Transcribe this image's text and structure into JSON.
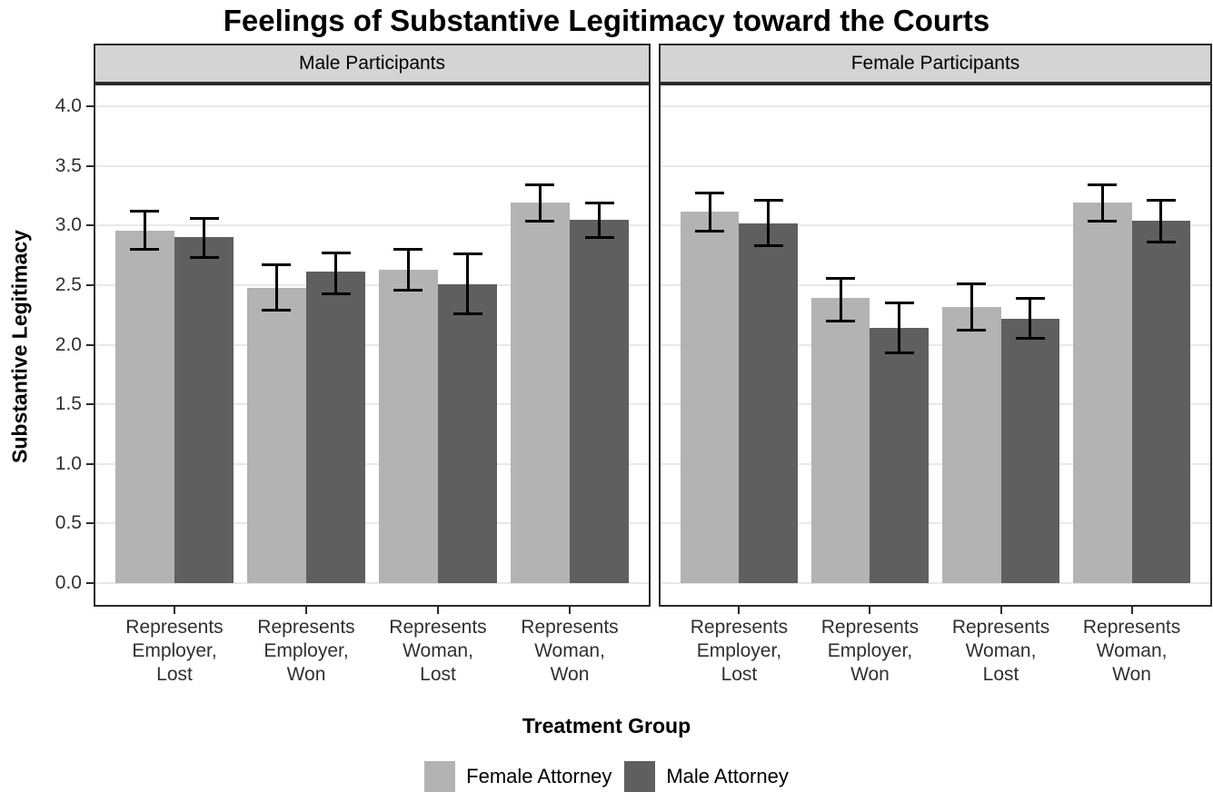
{
  "chart_data": {
    "type": "bar",
    "title": "Feelings of Substantive Legitimacy toward the Courts",
    "xlabel": "Treatment Group",
    "ylabel": "Substantive Legitimacy",
    "ylim": [
      0,
      4.2
    ],
    "yticks": [
      0.0,
      0.5,
      1.0,
      1.5,
      2.0,
      2.5,
      3.0,
      3.5,
      4.0
    ],
    "grid": "major horizontal only",
    "legend_position": "bottom",
    "categories": [
      [
        "Represents",
        "Employer,",
        "Lost"
      ],
      [
        "Represents",
        "Employer,",
        "Won"
      ],
      [
        "Represents",
        "Woman,",
        "Lost"
      ],
      [
        "Represents",
        "Woman,",
        "Won"
      ]
    ],
    "facets": [
      {
        "label": "Male Participants",
        "series": [
          {
            "name": "Female Attorney",
            "values": [
              2.96,
              2.48,
              2.63,
              3.19
            ],
            "ci_low": [
              2.8,
              2.29,
              2.46,
              3.04
            ],
            "ci_high": [
              3.12,
              2.67,
              2.8,
              3.34
            ]
          },
          {
            "name": "Male Attorney",
            "values": [
              2.9,
              2.61,
              2.51,
              3.05
            ],
            "ci_low": [
              2.73,
              2.43,
              2.26,
              2.9
            ],
            "ci_high": [
              3.06,
              2.77,
              2.76,
              3.19
            ]
          }
        ]
      },
      {
        "label": "Female Participants",
        "series": [
          {
            "name": "Female Attorney",
            "values": [
              3.12,
              2.39,
              2.32,
              3.19
            ],
            "ci_low": [
              2.95,
              2.2,
              2.12,
              3.04
            ],
            "ci_high": [
              3.27,
              2.56,
              2.51,
              3.34
            ]
          },
          {
            "name": "Male Attorney",
            "values": [
              3.02,
              2.14,
              2.22,
              3.04
            ],
            "ci_low": [
              2.83,
              1.93,
              2.05,
              2.86
            ],
            "ci_high": [
              3.21,
              2.35,
              2.39,
              3.21
            ]
          }
        ]
      }
    ],
    "legend": [
      {
        "label": "Female Attorney",
        "color": "#b3b3b3"
      },
      {
        "label": "Male Attorney",
        "color": "#5f5f5f"
      }
    ],
    "colors": {
      "female_attorney_bar": "#b3b3b3",
      "male_attorney_bar": "#5f5f5f",
      "strip_fill": "#d4d4d4",
      "panel_border": "#2a2a2a",
      "gridline": "#e8e8e8",
      "error_bar": "#000000",
      "background": "#ffffff",
      "title_text": "#000000",
      "tick_text": "#303030"
    }
  }
}
